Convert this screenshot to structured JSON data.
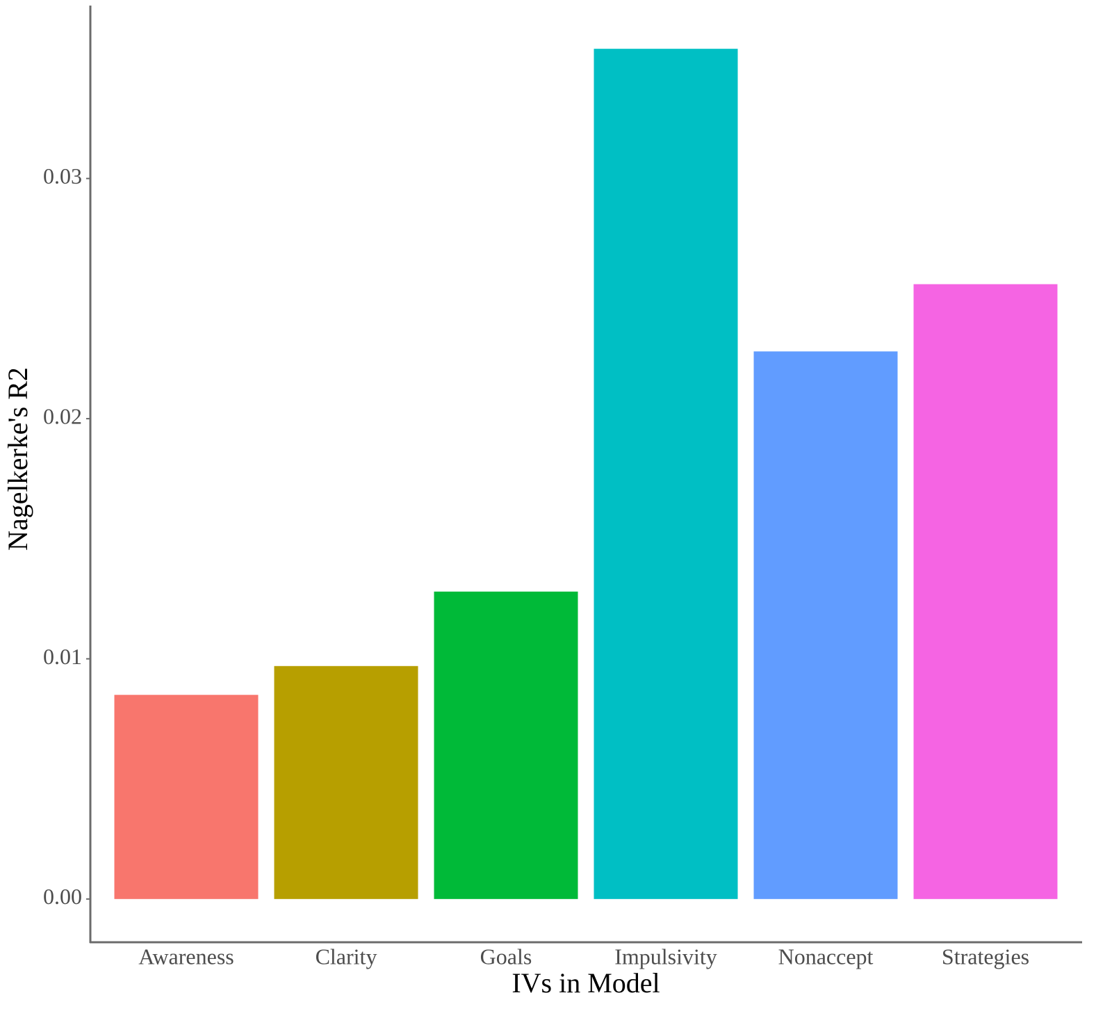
{
  "chart_data": {
    "type": "bar",
    "x_label": "IVs in Model",
    "y_label": "Nagelkerke's R2",
    "categories": [
      "Awareness",
      "Clarity",
      "Goals",
      "Impulsivity",
      "Nonaccept",
      "Strategies"
    ],
    "values": [
      0.0085,
      0.0097,
      0.0128,
      0.0354,
      0.0228,
      0.0256
    ],
    "colors": [
      "#f8766d",
      "#b79f00",
      "#00ba38",
      "#00bfc4",
      "#619cff",
      "#f564e3"
    ],
    "ylim": [
      -0.0018,
      0.0372
    ],
    "yticks": [
      {
        "value": 0,
        "label": "0.00"
      },
      0.01,
      0.02,
      0.03
    ],
    "grid": false
  }
}
